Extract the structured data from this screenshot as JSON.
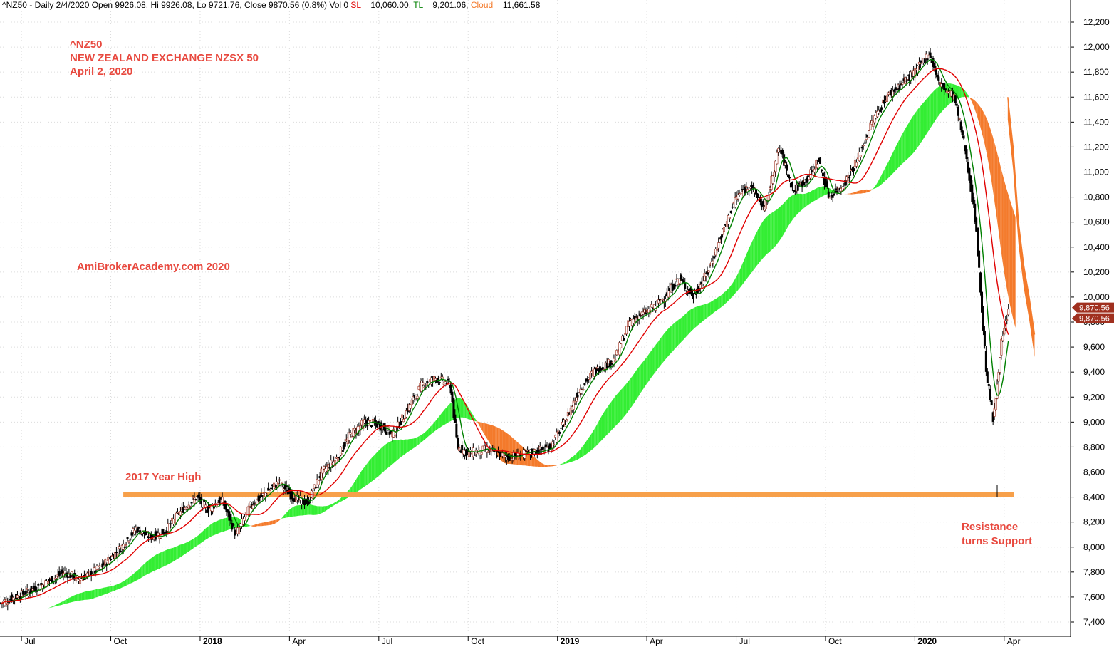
{
  "header": {
    "symbol": "^NZ50",
    "period": "Daily 2/4/2020",
    "open": "Open 9926.08,",
    "high": "Hi 9926.08,",
    "low": "Lo 9721.76,",
    "close": "Close 9870.56 (0.8%)",
    "volume": "Vol 0",
    "sl_label": "SL",
    "sl_value": "= 10,060.00,",
    "tl_label": "TL",
    "tl_value": "= 9,201.06,",
    "cloud_label": "Cloud",
    "cloud_value": "= 11,661.58"
  },
  "annotations": {
    "ticker": "^NZ50",
    "exchange": "NEW ZEALAND EXCHANGE  NZSX 50",
    "date": "April 2, 2020",
    "watermark": "AmiBrokerAcademy.com  2020",
    "year_high": "2017 Year High",
    "resistance_line1": "Resistance",
    "resistance_line2": "turns Support"
  },
  "price_tags": [
    "9,870.56",
    "9,870.56"
  ],
  "colors": {
    "sl": "#e00000",
    "tl": "#008000",
    "cloud_bull": "#33ee33",
    "cloud_bear": "#f47a2b",
    "resistance": "#f7a04a",
    "annotation": "#e8493f",
    "price_tag": "#a0301f"
  },
  "chart_data": {
    "type": "candlestick",
    "title": "^NZ50",
    "y_ticks": [
      "7,400",
      "7,600",
      "7,800",
      "8,000",
      "8,200",
      "8,400",
      "8,600",
      "8,800",
      "9,000",
      "9,200",
      "9,400",
      "9,600",
      "9,800",
      "10,000",
      "10,200",
      "10,400",
      "10,600",
      "10,800",
      "11,000",
      "11,200",
      "11,400",
      "11,600",
      "11,800",
      "12,000",
      "12,200"
    ],
    "ylim": [
      7250,
      12330
    ],
    "x_ticks": [
      {
        "label": "Jul",
        "t": 2017.5,
        "bold": false
      },
      {
        "label": "Oct",
        "t": 2017.75,
        "bold": false
      },
      {
        "label": "2018",
        "t": 2018.0,
        "bold": true
      },
      {
        "label": "Apr",
        "t": 2018.25,
        "bold": false
      },
      {
        "label": "Jul",
        "t": 2018.5,
        "bold": false
      },
      {
        "label": "Oct",
        "t": 2018.75,
        "bold": false
      },
      {
        "label": "2019",
        "t": 2019.0,
        "bold": true
      },
      {
        "label": "Apr",
        "t": 2019.25,
        "bold": false
      },
      {
        "label": "Jul",
        "t": 2019.5,
        "bold": false
      },
      {
        "label": "Oct",
        "t": 2019.75,
        "bold": false
      },
      {
        "label": "2020",
        "t": 2020.0,
        "bold": true
      },
      {
        "label": "Apr",
        "t": 2020.25,
        "bold": false
      }
    ],
    "xlim": [
      2017.44,
      2020.36
    ],
    "close_path": [
      [
        2017.44,
        7550
      ],
      [
        2017.5,
        7620
      ],
      [
        2017.56,
        7700
      ],
      [
        2017.62,
        7800
      ],
      [
        2017.66,
        7740
      ],
      [
        2017.72,
        7830
      ],
      [
        2017.78,
        8000
      ],
      [
        2017.82,
        8150
      ],
      [
        2017.86,
        8080
      ],
      [
        2017.9,
        8120
      ],
      [
        2017.95,
        8300
      ],
      [
        2017.99,
        8400
      ],
      [
        2018.02,
        8300
      ],
      [
        2018.06,
        8380
      ],
      [
        2018.1,
        8100
      ],
      [
        2018.14,
        8330
      ],
      [
        2018.19,
        8450
      ],
      [
        2018.22,
        8520
      ],
      [
        2018.26,
        8400
      ],
      [
        2018.3,
        8350
      ],
      [
        2018.34,
        8600
      ],
      [
        2018.38,
        8700
      ],
      [
        2018.42,
        8900
      ],
      [
        2018.46,
        9000
      ],
      [
        2018.5,
        8980
      ],
      [
        2018.54,
        8900
      ],
      [
        2018.58,
        9100
      ],
      [
        2018.62,
        9300
      ],
      [
        2018.66,
        9350
      ],
      [
        2018.7,
        9300
      ],
      [
        2018.72,
        8800
      ],
      [
        2018.75,
        8750
      ],
      [
        2018.8,
        8780
      ],
      [
        2018.86,
        8720
      ],
      [
        2018.92,
        8750
      ],
      [
        2018.98,
        8800
      ],
      [
        2019.02,
        9000
      ],
      [
        2019.06,
        9250
      ],
      [
        2019.1,
        9400
      ],
      [
        2019.16,
        9500
      ],
      [
        2019.2,
        9800
      ],
      [
        2019.26,
        9900
      ],
      [
        2019.3,
        10000
      ],
      [
        2019.34,
        10150
      ],
      [
        2019.38,
        10000
      ],
      [
        2019.42,
        10200
      ],
      [
        2019.46,
        10500
      ],
      [
        2019.5,
        10800
      ],
      [
        2019.54,
        10900
      ],
      [
        2019.58,
        10700
      ],
      [
        2019.62,
        11200
      ],
      [
        2019.66,
        10850
      ],
      [
        2019.7,
        10950
      ],
      [
        2019.73,
        11100
      ],
      [
        2019.76,
        10800
      ],
      [
        2019.8,
        10900
      ],
      [
        2019.84,
        11100
      ],
      [
        2019.88,
        11400
      ],
      [
        2019.92,
        11600
      ],
      [
        2019.96,
        11700
      ],
      [
        2020.0,
        11800
      ],
      [
        2020.04,
        11950
      ],
      [
        2020.07,
        11700
      ],
      [
        2020.11,
        11600
      ],
      [
        2020.14,
        11200
      ],
      [
        2020.17,
        10600
      ],
      [
        2020.2,
        9400
      ],
      [
        2020.22,
        9000
      ],
      [
        2020.24,
        9600
      ],
      [
        2020.26,
        9870.56
      ]
    ]
  }
}
